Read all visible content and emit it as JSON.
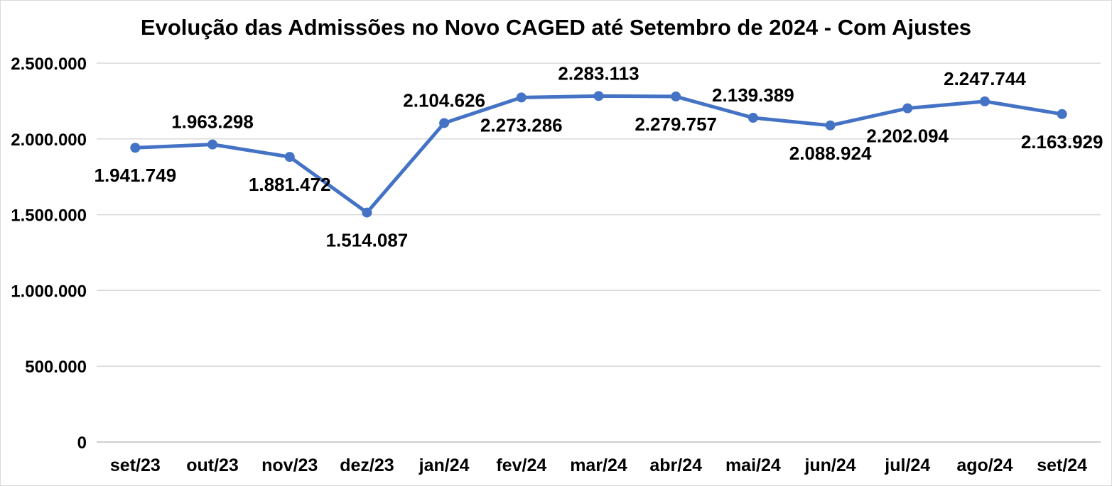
{
  "page": {
    "background": "#ffffff",
    "border_color": "#d9d9d9"
  },
  "chart_data": {
    "type": "line",
    "title": "Evolução das Admissões no Novo CAGED até Setembro de 2024 - Com Ajustes",
    "categories": [
      "set/23",
      "out/23",
      "nov/23",
      "dez/23",
      "jan/24",
      "fev/24",
      "mar/24",
      "abr/24",
      "mai/24",
      "jun/24",
      "jul/24",
      "ago/24",
      "set/24"
    ],
    "values": [
      1941749,
      1963298,
      1881472,
      1514087,
      2104626,
      2273286,
      2283113,
      2279757,
      2139389,
      2088924,
      2202094,
      2247744,
      2163929
    ],
    "data_labels": [
      "1.941.749",
      "1.963.298",
      "1.881.472",
      "1.514.087",
      "2.104.626",
      "2.273.286",
      "2.283.113",
      "2.279.757",
      "2.139.389",
      "2.088.924",
      "2.202.094",
      "2.247.744",
      "2.163.929"
    ],
    "label_positions": [
      "below",
      "above",
      "below",
      "below",
      "above",
      "below",
      "above",
      "below",
      "above",
      "below",
      "below",
      "above",
      "below"
    ],
    "y_ticks": [
      {
        "value": 0,
        "label": "0"
      },
      {
        "value": 500000,
        "label": "500.000"
      },
      {
        "value": 1000000,
        "label": "1.000.000"
      },
      {
        "value": 1500000,
        "label": "1.500.000"
      },
      {
        "value": 2000000,
        "label": "2.000.000"
      },
      {
        "value": 2500000,
        "label": "2.500.000"
      }
    ],
    "ylim": [
      0,
      2500000
    ],
    "line_color": "#4472C4",
    "marker_color": "#4472C4",
    "gridline_color": "#D9D9D9",
    "axis_line_color": "#BFBFBF",
    "text_color": "#000000",
    "legend": "none",
    "grid": "horizontal"
  }
}
